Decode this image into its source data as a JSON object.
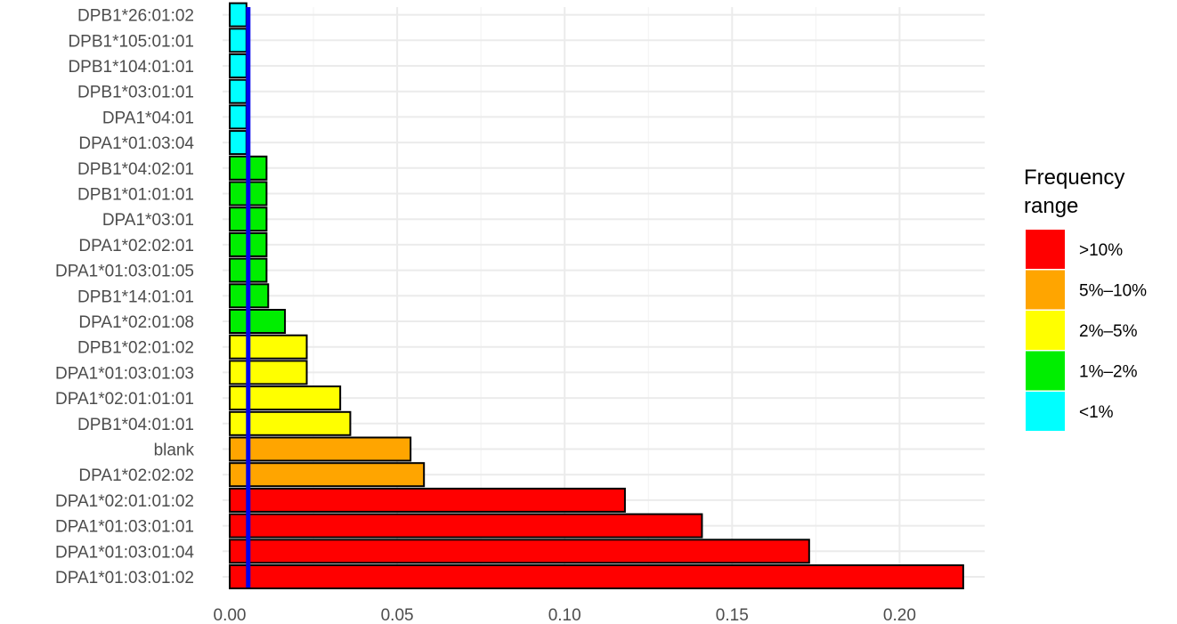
{
  "chart_data": {
    "type": "bar",
    "orientation": "horizontal",
    "title": "",
    "xlabel": "",
    "ylabel": "",
    "xlim": [
      0,
      0.22
    ],
    "x_ticks": [
      "0.00",
      "0.05",
      "0.10",
      "0.15",
      "0.20"
    ],
    "x_tick_values": [
      0,
      0.05,
      0.1,
      0.15,
      0.2
    ],
    "grid": true,
    "categories": [
      "DPA1*01:03:01:02",
      "DPA1*01:03:01:04",
      "DPA1*01:03:01:01",
      "DPA1*02:01:01:02",
      "DPA1*02:02:02",
      "blank",
      "DPB1*04:01:01",
      "DPA1*02:01:01:01",
      "DPA1*01:03:01:03",
      "DPB1*02:01:02",
      "DPA1*02:01:08",
      "DPB1*14:01:01",
      "DPA1*01:03:01:05",
      "DPA1*02:02:01",
      "DPA1*03:01",
      "DPB1*01:01:01",
      "DPB1*04:02:01",
      "DPA1*01:03:04",
      "DPA1*04:01",
      "DPB1*03:01:01",
      "DPB1*104:01:01",
      "DPB1*105:01:01",
      "DPB1*26:01:02"
    ],
    "values": [
      0.219,
      0.173,
      0.141,
      0.118,
      0.058,
      0.054,
      0.036,
      0.033,
      0.023,
      0.023,
      0.0165,
      0.0115,
      0.011,
      0.011,
      0.011,
      0.011,
      0.011,
      0.005,
      0.005,
      0.005,
      0.005,
      0.005,
      0.005
    ],
    "range": [
      ">10%",
      ">10%",
      ">10%",
      ">10%",
      "5%–10%",
      "5%–10%",
      "2%–5%",
      "2%–5%",
      "2%–5%",
      "2%–5%",
      "1%–2%",
      "1%–2%",
      "1%–2%",
      "1%–2%",
      "1%–2%",
      "1%–2%",
      "1%–2%",
      "<1%",
      "<1%",
      "<1%",
      "<1%",
      "<1%",
      "<1%"
    ],
    "reference_line": {
      "value": 0.005,
      "color": "#0000ee"
    },
    "legend": {
      "title_lines": [
        "Frequency",
        "range"
      ],
      "placement": "right",
      "items": [
        {
          "label": ">10%",
          "color": "#ff0000"
        },
        {
          "label": "5%–10%",
          "color": "#ffa500"
        },
        {
          "label": "2%–5%",
          "color": "#ffff00"
        },
        {
          "label": "1%–2%",
          "color": "#00ee00"
        },
        {
          "label": "<1%",
          "color": "#00ffff"
        }
      ]
    }
  }
}
